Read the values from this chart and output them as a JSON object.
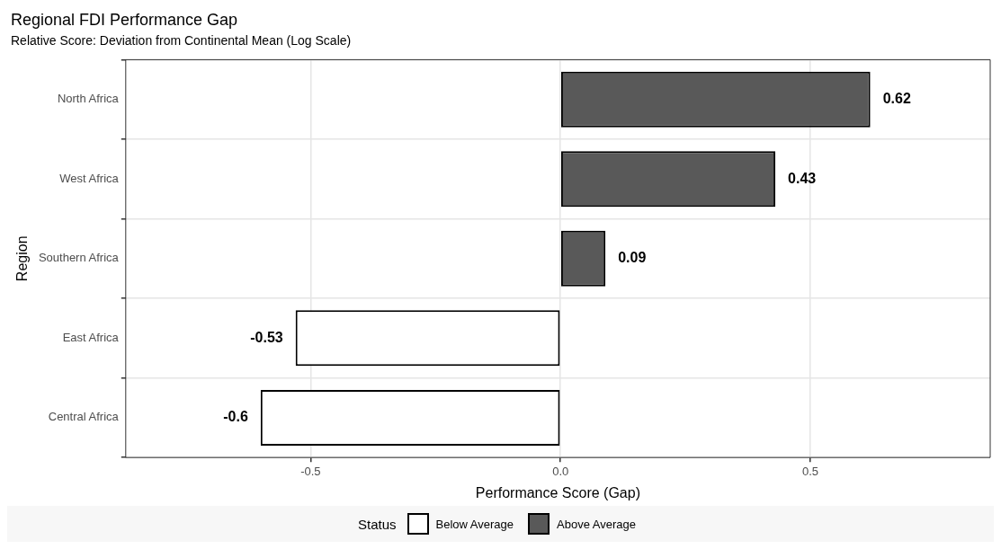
{
  "chart_data": {
    "type": "bar",
    "orientation": "horizontal",
    "stacked": true,
    "title": "Regional FDI Performance Gap",
    "subtitle": "Relative Score: Deviation from Continental Mean (Log Scale)",
    "xlabel": "Performance Score (Gap)",
    "ylabel": "Region",
    "legend_title": "Status",
    "categories": [
      "North Africa",
      "West Africa",
      "Southern Africa",
      "East Africa",
      "Central Africa"
    ],
    "series": [
      {
        "name": "Below Average",
        "color": "#ffffff",
        "values": [
          null,
          null,
          null,
          -0.53,
          -0.6
        ]
      },
      {
        "name": "Above Average",
        "color": "#595959",
        "values": [
          0.62,
          0.43,
          0.09,
          null,
          null
        ]
      }
    ],
    "xlim": [
      -0.87,
      0.86
    ],
    "xticks": [
      {
        "value": -0.5,
        "label": "-0.5"
      },
      {
        "value": 0,
        "label": "0.0"
      },
      {
        "value": 0.5,
        "label": "0.5"
      }
    ],
    "grid": true,
    "legend": "bottom",
    "data_labels": true
  }
}
